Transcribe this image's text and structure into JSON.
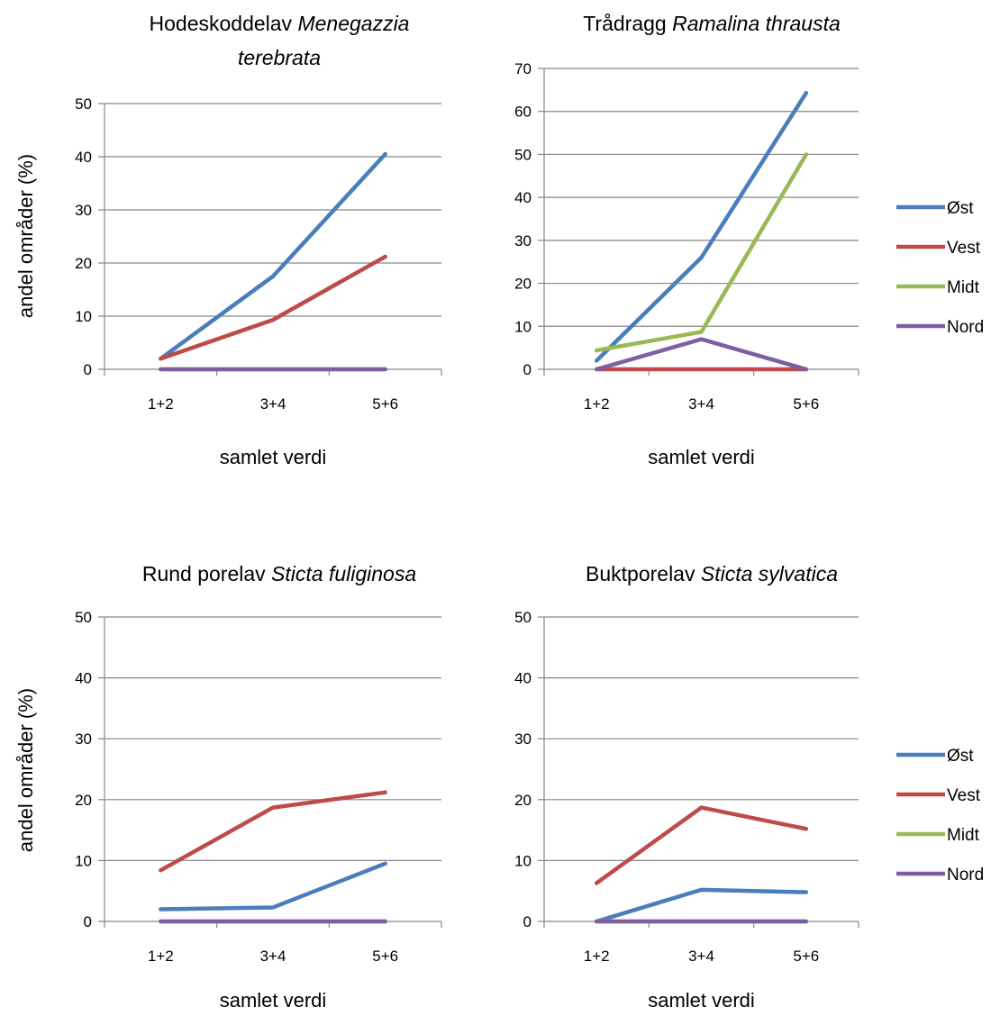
{
  "chart_data": [
    {
      "type": "line",
      "title_lines": [
        [
          {
            "text": "Hodeskoddelav ",
            "italic": false
          },
          {
            "text": "Menegazzia",
            "italic": true
          }
        ],
        [
          {
            "text": "terebrata",
            "italic": true
          }
        ]
      ],
      "categories": [
        "1+2",
        "3+4",
        "5+6"
      ],
      "xlabel": "samlet verdi",
      "ylabel": "andel områder (%)",
      "ylim": [
        0,
        50
      ],
      "yticks": [
        0,
        10,
        20,
        30,
        40,
        50
      ],
      "grid": true,
      "series": [
        {
          "name": "Øst",
          "color": "#4a7ebb",
          "values": [
            2,
            17.5,
            40.5
          ]
        },
        {
          "name": "Vest",
          "color": "#be4b48",
          "values": [
            2,
            9.3,
            21.2
          ]
        },
        {
          "name": "Midt",
          "color": "#98b954",
          "values": [
            0,
            0,
            0
          ]
        },
        {
          "name": "Nord",
          "color": "#7d5fa0",
          "values": [
            0,
            0,
            0
          ]
        }
      ]
    },
    {
      "type": "line",
      "title_lines": [
        [
          {
            "text": "Trådragg ",
            "italic": false
          },
          {
            "text": "Ramalina thrausta",
            "italic": true
          }
        ]
      ],
      "categories": [
        "1+2",
        "3+4",
        "5+6"
      ],
      "xlabel": "samlet verdi",
      "ylabel": "",
      "ylim": [
        0,
        70
      ],
      "yticks": [
        0,
        10,
        20,
        30,
        40,
        50,
        60,
        70
      ],
      "grid": true,
      "series": [
        {
          "name": "Øst",
          "color": "#4a7ebb",
          "values": [
            2,
            26,
            64.3
          ]
        },
        {
          "name": "Vest",
          "color": "#be4b48",
          "values": [
            0,
            0,
            0
          ]
        },
        {
          "name": "Midt",
          "color": "#98b954",
          "values": [
            4.4,
            8.7,
            50
          ]
        },
        {
          "name": "Nord",
          "color": "#7d5fa0",
          "values": [
            0,
            7,
            0
          ]
        }
      ]
    },
    {
      "type": "line",
      "title_lines": [
        [
          {
            "text": "Rund porelav ",
            "italic": false
          },
          {
            "text": "Sticta fuliginosa",
            "italic": true
          }
        ]
      ],
      "categories": [
        "1+2",
        "3+4",
        "5+6"
      ],
      "xlabel": "samlet verdi",
      "ylabel": "andel områder (%)",
      "ylim": [
        0,
        50
      ],
      "yticks": [
        0,
        10,
        20,
        30,
        40,
        50
      ],
      "grid": true,
      "series": [
        {
          "name": "Øst",
          "color": "#4a7ebb",
          "values": [
            2,
            2.3,
            9.5
          ]
        },
        {
          "name": "Vest",
          "color": "#be4b48",
          "values": [
            8.4,
            18.7,
            21.2
          ]
        },
        {
          "name": "Midt",
          "color": "#98b954",
          "values": [
            0,
            0,
            0
          ]
        },
        {
          "name": "Nord",
          "color": "#7d5fa0",
          "values": [
            0,
            0,
            0
          ]
        }
      ]
    },
    {
      "type": "line",
      "title_lines": [
        [
          {
            "text": "Buktporelav ",
            "italic": false
          },
          {
            "text": "Sticta sylvatica",
            "italic": true
          }
        ]
      ],
      "categories": [
        "1+2",
        "3+4",
        "5+6"
      ],
      "xlabel": "samlet verdi",
      "ylabel": "",
      "ylim": [
        0,
        50
      ],
      "yticks": [
        0,
        10,
        20,
        30,
        40,
        50
      ],
      "grid": true,
      "series": [
        {
          "name": "Øst",
          "color": "#4a7ebb",
          "values": [
            0,
            5.2,
            4.8
          ]
        },
        {
          "name": "Vest",
          "color": "#be4b48",
          "values": [
            6.3,
            18.7,
            15.2
          ]
        },
        {
          "name": "Midt",
          "color": "#98b954",
          "values": [
            0,
            0,
            0
          ]
        },
        {
          "name": "Nord",
          "color": "#7d5fa0",
          "values": [
            0,
            0,
            0
          ]
        }
      ]
    }
  ],
  "legend": {
    "placement": "right",
    "entries": [
      {
        "name": "Øst",
        "color": "#4a7ebb"
      },
      {
        "name": "Vest",
        "color": "#be4b48"
      },
      {
        "name": "Midt",
        "color": "#98b954"
      },
      {
        "name": "Nord",
        "color": "#7d5fa0"
      }
    ]
  }
}
